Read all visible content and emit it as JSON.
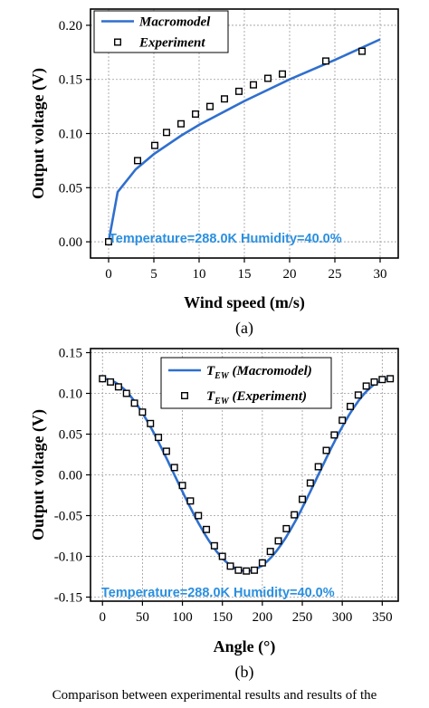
{
  "chart_data": [
    {
      "type": "line",
      "panel_label": "(a)",
      "xlabel": "Wind speed (m/s)",
      "ylabel": "Output voltage (V)",
      "xlim": [
        -2,
        32
      ],
      "ylim": [
        -0.015,
        0.215
      ],
      "xticks": [
        0,
        5,
        10,
        15,
        20,
        25,
        30
      ],
      "yticks": [
        0.0,
        0.05,
        0.1,
        0.15,
        0.2
      ],
      "ytick_labels": [
        "0.00",
        "0.05",
        "0.10",
        "0.15",
        "0.20"
      ],
      "grid": true,
      "legend_position": "top-left",
      "annotation": "Temperature=288.0K  Humidity=40.0%",
      "series": [
        {
          "name": "Macromodel",
          "kind": "line",
          "color": "#2f6fce",
          "x": [
            0,
            1,
            3,
            5,
            8,
            10,
            15,
            20,
            25,
            30
          ],
          "y": [
            0,
            0.046,
            0.067,
            0.081,
            0.098,
            0.108,
            0.13,
            0.15,
            0.168,
            0.187
          ]
        },
        {
          "name": "Experiment",
          "kind": "scatter",
          "color": "#000000",
          "x": [
            0,
            3.2,
            5.1,
            6.4,
            8,
            9.6,
            11.2,
            12.8,
            14.4,
            16,
            17.6,
            19.2,
            24,
            28
          ],
          "y": [
            0.0,
            0.075,
            0.089,
            0.101,
            0.109,
            0.118,
            0.125,
            0.132,
            0.139,
            0.145,
            0.151,
            0.155,
            0.167,
            0.176
          ]
        }
      ]
    },
    {
      "type": "line",
      "panel_label": "(b)",
      "xlabel": "Angle (°)",
      "ylabel": "Output voltage (V)",
      "xlim": [
        -15,
        370
      ],
      "ylim": [
        -0.155,
        0.155
      ],
      "xticks": [
        0,
        50,
        100,
        150,
        200,
        250,
        300,
        350
      ],
      "yticks": [
        -0.15,
        -0.1,
        -0.05,
        0.0,
        0.05,
        0.1,
        0.15
      ],
      "ytick_labels": [
        "-0.15",
        "-0.10",
        "-0.05",
        "0.00",
        "0.05",
        "0.10",
        "0.15"
      ],
      "grid": true,
      "legend_position": "top-right",
      "annotation": "Temperature=288.0K  Humidity=40.0%",
      "series": [
        {
          "name": "T_EW (Macromodel)",
          "name_main": "T",
          "name_sub": "EW",
          "name_rest": " (Macromodel)",
          "kind": "line",
          "color": "#2f6fce",
          "model": "cosine",
          "amplitude": 0.118,
          "phase_center": 180
        },
        {
          "name": "T_EW (Experiment)",
          "name_main": "T",
          "name_sub": "EW",
          "name_rest": " (Experiment)",
          "kind": "scatter",
          "color": "#000000",
          "x": [
            0,
            10,
            20,
            30,
            40,
            50,
            60,
            70,
            80,
            90,
            100,
            110,
            120,
            130,
            140,
            150,
            160,
            170,
            180,
            190,
            200,
            210,
            220,
            230,
            240,
            250,
            260,
            270,
            280,
            290,
            300,
            310,
            320,
            330,
            340,
            350,
            360
          ],
          "y": [
            0.118,
            0.114,
            0.108,
            0.1,
            0.088,
            0.077,
            0.063,
            0.046,
            0.029,
            0.009,
            -0.013,
            -0.032,
            -0.05,
            -0.067,
            -0.087,
            -0.1,
            -0.112,
            -0.117,
            -0.118,
            -0.117,
            -0.108,
            -0.094,
            -0.081,
            -0.066,
            -0.049,
            -0.03,
            -0.01,
            0.01,
            0.03,
            0.049,
            0.067,
            0.084,
            0.098,
            0.109,
            0.114,
            0.117,
            0.118
          ]
        }
      ]
    }
  ],
  "caption_fragment": "Comparison between experimental results and results of the"
}
